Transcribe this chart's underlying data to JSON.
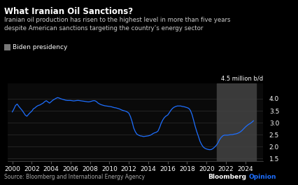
{
  "title": "What Iranian Oil Sanctions?",
  "subtitle": "Iranian oil production has risen to the highest level in more than five years\ndespite American sanctions targeting the country’s energy sector",
  "legend_label": "Biden presidency",
  "ylabel": "4.5 million b/d",
  "source": "Source: Bloomberg and International Energy Agency",
  "bloomberg_label": "Bloomberg",
  "opinion_label": "Opinion",
  "bg_color": "#000000",
  "plot_bg_color": "#0a0a0a",
  "line_color": "#1e6fff",
  "biden_shade_color": "#3a3a3a",
  "biden_start": 2021.08,
  "biden_end": 2025.1,
  "xlim": [
    1999.5,
    2025.8
  ],
  "ylim": [
    1.4,
    4.65
  ],
  "yticks": [
    1.5,
    2.0,
    2.5,
    3.0,
    3.5,
    4.0
  ],
  "xticks": [
    2000,
    2002,
    2004,
    2006,
    2008,
    2010,
    2012,
    2014,
    2016,
    2018,
    2020,
    2022,
    2024
  ],
  "x": [
    2000.0,
    2000.17,
    2000.33,
    2000.5,
    2000.67,
    2000.83,
    2001.0,
    2001.17,
    2001.33,
    2001.5,
    2001.67,
    2001.83,
    2002.0,
    2002.17,
    2002.33,
    2002.5,
    2002.67,
    2002.83,
    2003.0,
    2003.17,
    2003.33,
    2003.5,
    2003.67,
    2003.83,
    2004.0,
    2004.17,
    2004.33,
    2004.5,
    2004.67,
    2004.83,
    2005.0,
    2005.17,
    2005.33,
    2005.5,
    2005.67,
    2005.83,
    2006.0,
    2006.17,
    2006.33,
    2006.5,
    2006.67,
    2006.83,
    2007.0,
    2007.17,
    2007.33,
    2007.5,
    2007.67,
    2007.83,
    2008.0,
    2008.17,
    2008.33,
    2008.5,
    2008.67,
    2008.83,
    2009.0,
    2009.17,
    2009.33,
    2009.5,
    2009.67,
    2009.83,
    2010.0,
    2010.17,
    2010.33,
    2010.5,
    2010.67,
    2010.83,
    2011.0,
    2011.17,
    2011.33,
    2011.5,
    2011.67,
    2011.83,
    2012.0,
    2012.17,
    2012.33,
    2012.5,
    2012.67,
    2012.83,
    2013.0,
    2013.17,
    2013.33,
    2013.5,
    2013.67,
    2013.83,
    2014.0,
    2014.17,
    2014.33,
    2014.5,
    2014.67,
    2014.83,
    2015.0,
    2015.17,
    2015.33,
    2015.5,
    2015.67,
    2015.83,
    2016.0,
    2016.17,
    2016.33,
    2016.5,
    2016.67,
    2016.83,
    2017.0,
    2017.17,
    2017.33,
    2017.5,
    2017.67,
    2017.83,
    2018.0,
    2018.17,
    2018.33,
    2018.5,
    2018.67,
    2018.83,
    2019.0,
    2019.17,
    2019.33,
    2019.5,
    2019.67,
    2019.83,
    2020.0,
    2020.17,
    2020.33,
    2020.5,
    2020.67,
    2020.83,
    2021.0,
    2021.17,
    2021.33,
    2021.5,
    2021.67,
    2021.83,
    2022.0,
    2022.17,
    2022.33,
    2022.5,
    2022.67,
    2022.83,
    2023.0,
    2023.17,
    2023.33,
    2023.5,
    2023.67,
    2023.83,
    2024.0,
    2024.17,
    2024.33,
    2024.5,
    2024.67,
    2024.83
  ],
  "y": [
    3.45,
    3.58,
    3.72,
    3.78,
    3.68,
    3.6,
    3.52,
    3.42,
    3.32,
    3.27,
    3.35,
    3.42,
    3.48,
    3.58,
    3.62,
    3.68,
    3.72,
    3.74,
    3.78,
    3.82,
    3.88,
    3.92,
    3.87,
    3.82,
    3.88,
    3.94,
    3.98,
    4.02,
    4.05,
    4.03,
    4.0,
    3.98,
    3.96,
    3.94,
    3.93,
    3.93,
    3.93,
    3.92,
    3.91,
    3.92,
    3.93,
    3.93,
    3.92,
    3.91,
    3.9,
    3.89,
    3.88,
    3.87,
    3.88,
    3.9,
    3.92,
    3.92,
    3.88,
    3.82,
    3.78,
    3.75,
    3.73,
    3.71,
    3.7,
    3.69,
    3.68,
    3.67,
    3.65,
    3.63,
    3.62,
    3.6,
    3.58,
    3.55,
    3.52,
    3.5,
    3.48,
    3.45,
    3.4,
    3.25,
    3.05,
    2.78,
    2.62,
    2.52,
    2.48,
    2.45,
    2.44,
    2.42,
    2.43,
    2.44,
    2.45,
    2.47,
    2.5,
    2.55,
    2.58,
    2.6,
    2.65,
    2.8,
    2.98,
    3.12,
    3.22,
    3.28,
    3.32,
    3.42,
    3.52,
    3.6,
    3.65,
    3.68,
    3.7,
    3.7,
    3.7,
    3.68,
    3.67,
    3.65,
    3.63,
    3.6,
    3.52,
    3.35,
    3.1,
    2.85,
    2.62,
    2.42,
    2.22,
    2.08,
    1.98,
    1.93,
    1.9,
    1.88,
    1.87,
    1.88,
    1.92,
    1.98,
    2.05,
    2.15,
    2.28,
    2.38,
    2.45,
    2.48,
    2.48,
    2.48,
    2.49,
    2.5,
    2.5,
    2.52,
    2.53,
    2.55,
    2.58,
    2.62,
    2.68,
    2.75,
    2.82,
    2.88,
    2.93,
    2.97,
    3.02,
    3.08
  ]
}
